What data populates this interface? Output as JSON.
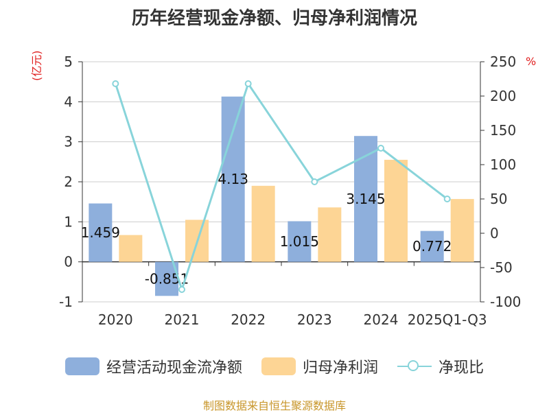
{
  "chart_data": {
    "type": "bar",
    "title": "历年经营现金净额、归母净利润情况",
    "categories": [
      "2020",
      "2021",
      "2022",
      "2023",
      "2024",
      "2025Q1-Q3"
    ],
    "series": [
      {
        "name": "经营活动现金流净额",
        "type": "bar",
        "axis": "left",
        "color": "#8eafdc",
        "values": [
          1.459,
          -0.851,
          4.13,
          1.015,
          3.145,
          0.772
        ],
        "labels": [
          "1.459",
          "-0.851",
          "4.13",
          "1.015",
          "3.145",
          "0.772"
        ]
      },
      {
        "name": "归母净利润",
        "type": "bar",
        "axis": "left",
        "color": "#fdd595",
        "values": [
          0.67,
          1.05,
          1.9,
          1.36,
          2.55,
          1.57
        ]
      },
      {
        "name": "净现比",
        "type": "line",
        "axis": "right",
        "color": "#88d4da",
        "values": [
          218,
          -82,
          218,
          75,
          124,
          50
        ]
      }
    ],
    "y_left": {
      "unit": "(亿元)",
      "ylim": [
        -1,
        5
      ],
      "ticks": [
        -1,
        0,
        1,
        2,
        3,
        4,
        5
      ]
    },
    "y_right": {
      "unit": "%",
      "ylim": [
        -100,
        250
      ],
      "ticks": [
        -100,
        -50,
        0,
        50,
        100,
        150,
        200,
        250
      ]
    },
    "grid": true,
    "legend_position": "bottom"
  },
  "source": "制图数据来自恒生聚源数据库"
}
